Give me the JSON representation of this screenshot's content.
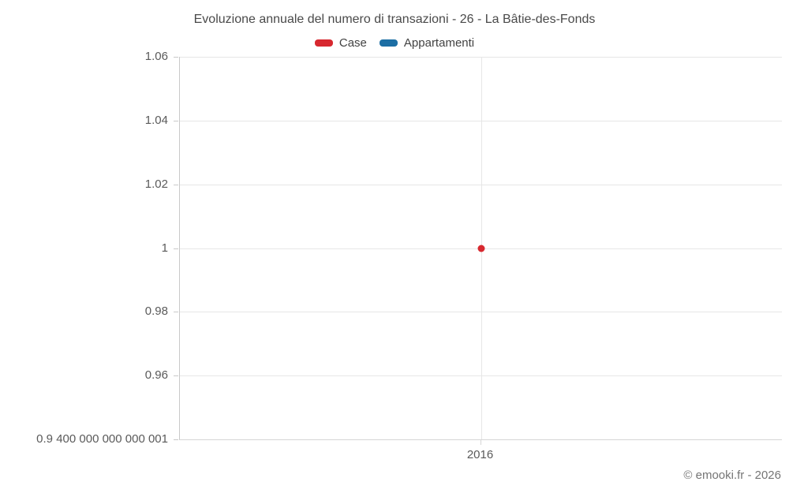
{
  "chart": {
    "title": "Evoluzione annuale del numero di transazioni - 26 - La Bâtie-des-Fonds",
    "footer": "© emooki.fr - 2026"
  },
  "legend": {
    "items": [
      {
        "label": "Case",
        "color": "#d7282f"
      },
      {
        "label": "Appartamenti",
        "color": "#1c6ea4"
      }
    ]
  },
  "chart_data": {
    "type": "line",
    "title": "Evoluzione annuale del numero di transazioni - 26 - La Bâtie-des-Fonds",
    "xlabel": "",
    "ylabel": "",
    "x": [
      2016
    ],
    "x_tick_labels": [
      "2016"
    ],
    "y_tick_labels": [
      "1.06",
      "1.04",
      "1.02",
      "1",
      "0.98",
      "0.96",
      "0.9 400 000 000 000 001"
    ],
    "ylim": [
      0.94,
      1.06
    ],
    "grid": true,
    "legend_position": "top-center",
    "series": [
      {
        "name": "Case",
        "color": "#d7282f",
        "values": [
          1
        ]
      },
      {
        "name": "Appartamenti",
        "color": "#1c6ea4",
        "values": []
      }
    ]
  },
  "layout_colors": {
    "gridline": "#e6e6e6",
    "axis": "#c9c9c9",
    "label_text": "#5a5a5a",
    "title_text": "#4a4a4a",
    "footer_text": "#757575"
  }
}
